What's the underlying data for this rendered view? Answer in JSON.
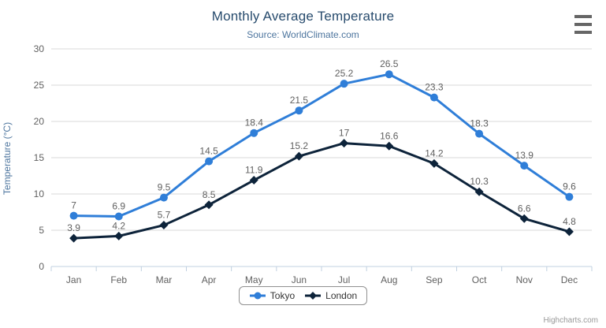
{
  "title": "Monthly Average Temperature",
  "subtitle": "Source: WorldClimate.com",
  "credit": "Highcharts.com",
  "colors": {
    "title": "#274b6d",
    "subtitle": "#4d759e",
    "axis_label": "#606060",
    "axis_title": "#4d759e",
    "gridline": "#d8d8d8",
    "axis_line": "#c0d0e0",
    "data_label": "#606060",
    "legend_text": "#333333",
    "legend_border": "#909090",
    "credit_text": "#999999",
    "menu_icon": "#666666"
  },
  "chart_data": {
    "type": "line",
    "title": "Monthly Average Temperature",
    "subtitle": "Source: WorldClimate.com",
    "categories": [
      "Jan",
      "Feb",
      "Mar",
      "Apr",
      "May",
      "Jun",
      "Jul",
      "Aug",
      "Sep",
      "Oct",
      "Nov",
      "Dec"
    ],
    "xlabel": "",
    "ylabel": "Temperature (°C)",
    "ylim": [
      0,
      30
    ],
    "ytick_interval": 5,
    "yticks": [
      0,
      5,
      10,
      15,
      20,
      25,
      30
    ],
    "grid": true,
    "data_labels": true,
    "legend_position": "bottom-center",
    "series": [
      {
        "name": "Tokyo",
        "color": "#2f7ed8",
        "marker": "circle",
        "values": [
          7,
          6.9,
          9.5,
          14.5,
          18.4,
          21.5,
          25.2,
          26.5,
          23.3,
          18.3,
          13.9,
          9.6
        ]
      },
      {
        "name": "London",
        "color": "#0d233a",
        "marker": "diamond",
        "values": [
          3.9,
          4.2,
          5.7,
          8.5,
          11.9,
          15.2,
          17,
          16.6,
          14.2,
          10.3,
          6.6,
          4.8
        ]
      }
    ]
  }
}
